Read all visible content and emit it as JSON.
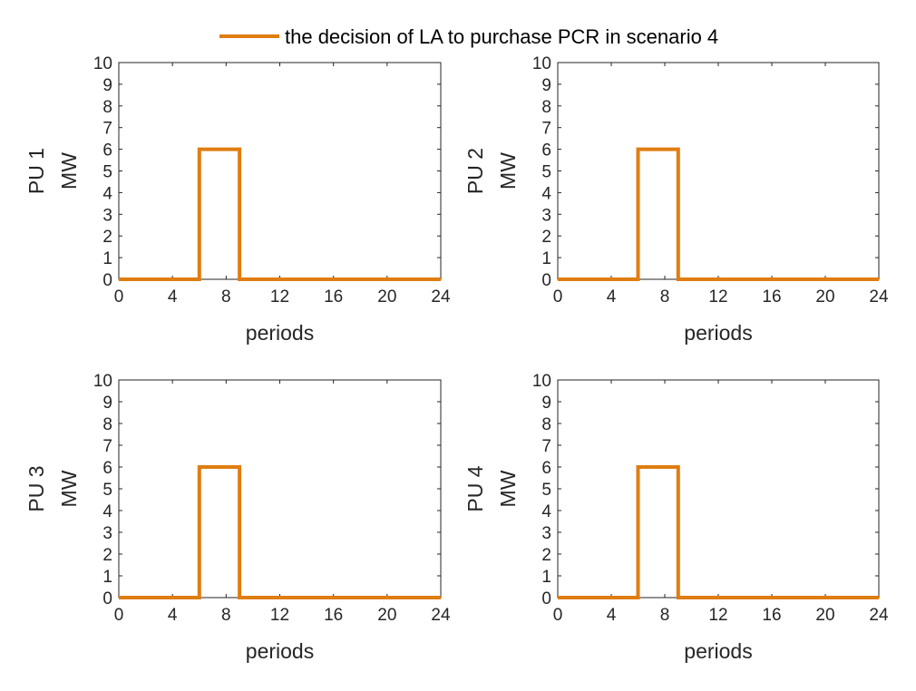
{
  "legend": {
    "label": "the decision of LA to purchase PCR in scenario 4",
    "color": "#e07d10"
  },
  "colors": {
    "series": "#e07d10",
    "axis": "#262626",
    "background": "#ffffff"
  },
  "chart_data": [
    {
      "type": "line",
      "step": true,
      "ylabel_outer": "PU 1",
      "ylabel": "MW",
      "xlabel": "periods",
      "xlim": [
        0,
        24
      ],
      "ylim": [
        0,
        10
      ],
      "xticks": [
        "0",
        "4",
        "8",
        "12",
        "16",
        "20",
        "24"
      ],
      "yticks": [
        "0",
        "1",
        "2",
        "3",
        "4",
        "5",
        "6",
        "7",
        "8",
        "9",
        "10"
      ],
      "series": [
        {
          "name": "the decision of LA to purchase PCR in scenario 4",
          "x": [
            0,
            6,
            6,
            9,
            9,
            24
          ],
          "y": [
            0,
            0,
            6,
            6,
            0,
            0
          ]
        }
      ]
    },
    {
      "type": "line",
      "step": true,
      "ylabel_outer": "PU 2",
      "ylabel": "MW",
      "xlabel": "periods",
      "xlim": [
        0,
        24
      ],
      "ylim": [
        0,
        10
      ],
      "xticks": [
        "0",
        "4",
        "8",
        "12",
        "16",
        "20",
        "24"
      ],
      "yticks": [
        "0",
        "1",
        "2",
        "3",
        "4",
        "5",
        "6",
        "7",
        "8",
        "9",
        "10"
      ],
      "series": [
        {
          "name": "the decision of LA to purchase PCR in scenario 4",
          "x": [
            0,
            6,
            6,
            9,
            9,
            24
          ],
          "y": [
            0,
            0,
            6,
            6,
            0,
            0
          ]
        }
      ]
    },
    {
      "type": "line",
      "step": true,
      "ylabel_outer": "PU 3",
      "ylabel": "MW",
      "xlabel": "periods",
      "xlim": [
        0,
        24
      ],
      "ylim": [
        0,
        10
      ],
      "xticks": [
        "0",
        "4",
        "8",
        "12",
        "16",
        "20",
        "24"
      ],
      "yticks": [
        "0",
        "1",
        "2",
        "3",
        "4",
        "5",
        "6",
        "7",
        "8",
        "9",
        "10"
      ],
      "series": [
        {
          "name": "the decision of LA to purchase PCR in scenario 4",
          "x": [
            0,
            6,
            6,
            9,
            9,
            24
          ],
          "y": [
            0,
            0,
            6,
            6,
            0,
            0
          ]
        }
      ]
    },
    {
      "type": "line",
      "step": true,
      "ylabel_outer": "PU 4",
      "ylabel": "MW",
      "xlabel": "periods",
      "xlim": [
        0,
        24
      ],
      "ylim": [
        0,
        10
      ],
      "xticks": [
        "0",
        "4",
        "8",
        "12",
        "16",
        "20",
        "24"
      ],
      "yticks": [
        "0",
        "1",
        "2",
        "3",
        "4",
        "5",
        "6",
        "7",
        "8",
        "9",
        "10"
      ],
      "series": [
        {
          "name": "the decision of LA to purchase PCR in scenario 4",
          "x": [
            0,
            6,
            6,
            9,
            9,
            24
          ],
          "y": [
            0,
            0,
            6,
            6,
            0,
            0
          ]
        }
      ]
    }
  ]
}
